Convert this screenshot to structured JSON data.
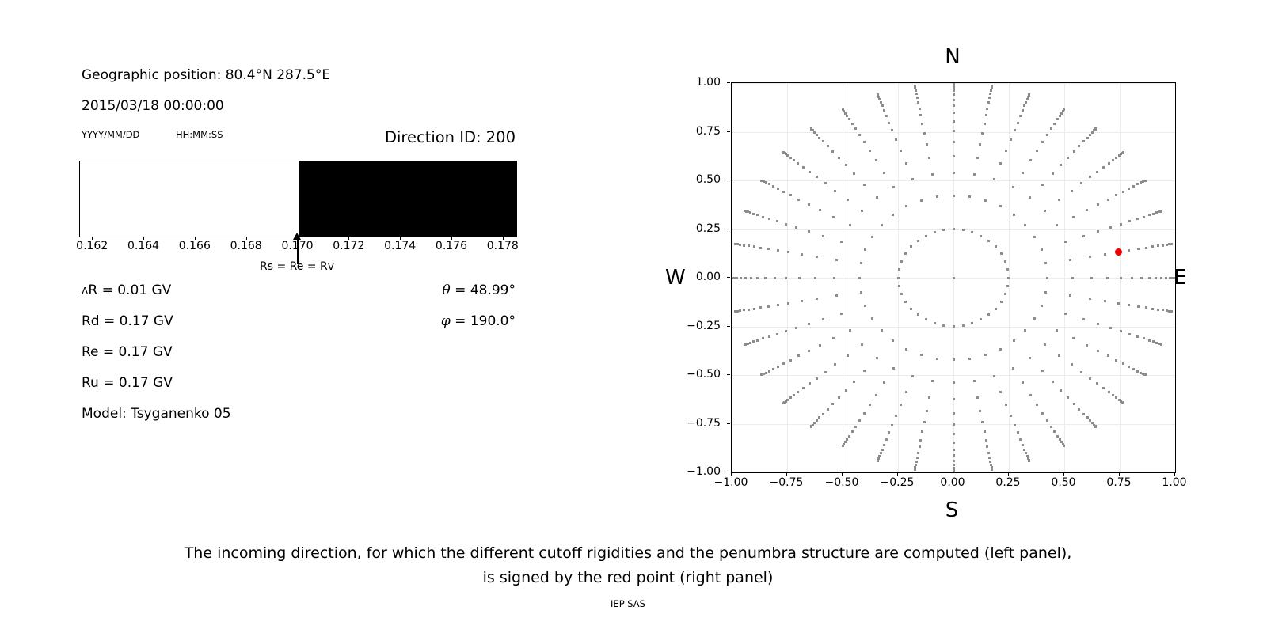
{
  "left_panel": {
    "geo_position": "Geographic position: 80.4°N 287.5°E",
    "datetime": "2015/03/18 00:00:00",
    "date_format_label": "YYYY/MM/DD",
    "time_format_label": "HH:MM:SS",
    "direction_id": "Direction ID: 200",
    "arrow_label": "Rs = Re = Rv",
    "params": {
      "delta_r_sym": "Δ",
      "delta_r_rest": "R = 0.01 GV",
      "rd": "Rd = 0.17 GV",
      "re": "Re = 0.17 GV",
      "ru": "Ru = 0.17 GV",
      "model": "Model: Tsyganenko 05",
      "theta_sym": "θ",
      "theta_rest": " = 48.99°",
      "phi_sym": "φ",
      "phi_rest": " = 190.0°"
    }
  },
  "caption": {
    "line1": "The incoming direction, for which the different cutoff rigidities and the penumbra structure are computed (left panel),",
    "line2": "is signed by the red point (right panel)",
    "credit": "IEP SAS"
  },
  "chart_data": [
    {
      "type": "area",
      "name": "penumbra-structure",
      "xlim": [
        0.1615,
        0.1785
      ],
      "tick_values": [
        0.162,
        0.164,
        0.166,
        0.168,
        0.17,
        0.172,
        0.174,
        0.176,
        0.178
      ],
      "tick_labels": [
        "0.162",
        "0.164",
        "0.166",
        "0.168",
        "0.170",
        "0.172",
        "0.174",
        "0.176",
        "0.178"
      ],
      "segments": [
        {
          "from": 0.1615,
          "to": 0.17,
          "color": "#ffffff",
          "meaning": "allowed rigidities"
        },
        {
          "from": 0.17,
          "to": 0.1785,
          "color": "#000000",
          "meaning": "forbidden rigidities"
        }
      ],
      "annotation": {
        "text": "Rs = Re = Rv",
        "x": 0.17
      },
      "units": "GV",
      "grid": false
    },
    {
      "type": "scatter",
      "name": "incoming-directions",
      "xlim": [
        -1,
        1
      ],
      "ylim": [
        -1,
        1
      ],
      "xtick_values": [
        -1,
        -0.75,
        -0.5,
        -0.25,
        0,
        0.25,
        0.5,
        0.75,
        1
      ],
      "xtick_labels": [
        "−1.00",
        "−0.75",
        "−0.50",
        "−0.25",
        "0.00",
        "0.25",
        "0.50",
        "0.75",
        "1.00"
      ],
      "ytick_values": [
        1,
        0.75,
        0.5,
        0.25,
        0,
        -0.25,
        -0.5,
        -0.75,
        -1
      ],
      "ytick_labels": [
        "1.00",
        "0.75",
        "0.50",
        "0.25",
        "0.00",
        "−0.25",
        "−0.50",
        "−0.75",
        "−1.00"
      ],
      "compass": {
        "north": "N",
        "south": "S",
        "east": "E",
        "west": "W"
      },
      "azimuth_step_deg": 10,
      "ring_radii": [
        0.248,
        0.4227,
        0.5367,
        0.6242,
        0.6953,
        0.7546,
        0.8047,
        0.8472,
        0.8833,
        0.9138,
        0.9391,
        0.9596,
        0.9758,
        0.9877,
        0.9956,
        0.9995
      ],
      "has_center_point": true,
      "dot_color": "#8c8c8c",
      "red_point": {
        "x": 0.7431,
        "y": 0.131,
        "theta_deg": 48.99,
        "phi_deg": 190.0,
        "color": "#ee0000"
      },
      "grid": true,
      "grid_color": "#ececec",
      "legend": "none"
    }
  ]
}
